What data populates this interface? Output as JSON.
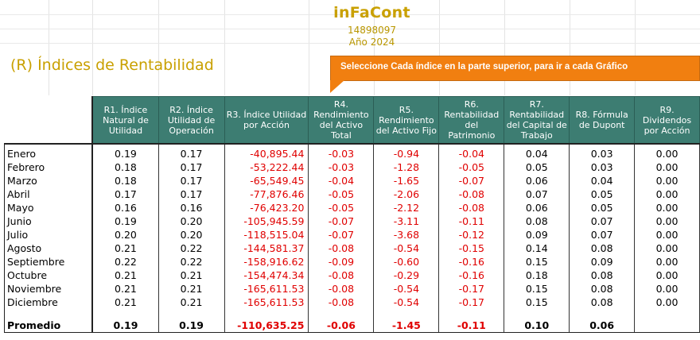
{
  "header": {
    "brand": "inFaCont",
    "company_id": "14898097",
    "year_label": "Año 2024"
  },
  "section_title": "(R) Índices de Rentabilidad",
  "callout_text": "Seleccione Cada índice en la parte superior, para ir a cada Gráfico",
  "table": {
    "columns": [
      "R1. Índice Natural de Utilidad",
      "R2. Índice Utilidad de Operación",
      "R3. Índice Utilidad por Acción",
      "R4. Rendimiento del Activo Total",
      "R5. Rendimiento del Activo Fijo",
      "R6. Rentabilidad del Patrimonio",
      "R7. Rentabilidad del Capital de Trabajo",
      "R8. Fórmula de Dupont",
      "R9. Dividendos por Acción"
    ],
    "rows": [
      {
        "month": "Enero",
        "values": [
          "0.19",
          "0.17",
          "-40,895.44",
          "-0.03",
          "-0.94",
          "-0.04",
          "0.04",
          "0.03",
          "0.00"
        ]
      },
      {
        "month": "Febrero",
        "values": [
          "0.18",
          "0.17",
          "-53,222.44",
          "-0.03",
          "-1.28",
          "-0.05",
          "0.05",
          "0.03",
          "0.00"
        ]
      },
      {
        "month": "Marzo",
        "values": [
          "0.18",
          "0.17",
          "-65,549.45",
          "-0.04",
          "-1.65",
          "-0.07",
          "0.06",
          "0.04",
          "0.00"
        ]
      },
      {
        "month": "Abril",
        "values": [
          "0.17",
          "0.17",
          "-77,876.46",
          "-0.05",
          "-2.06",
          "-0.08",
          "0.07",
          "0.05",
          "0.00"
        ]
      },
      {
        "month": "Mayo",
        "values": [
          "0.16",
          "0.16",
          "-76,423.20",
          "-0.05",
          "-2.12",
          "-0.08",
          "0.06",
          "0.05",
          "0.00"
        ]
      },
      {
        "month": "Junio",
        "values": [
          "0.19",
          "0.20",
          "-105,945.59",
          "-0.07",
          "-3.11",
          "-0.11",
          "0.08",
          "0.07",
          "0.00"
        ]
      },
      {
        "month": "Julio",
        "values": [
          "0.20",
          "0.20",
          "-118,515.04",
          "-0.07",
          "-3.68",
          "-0.12",
          "0.09",
          "0.07",
          "0.00"
        ]
      },
      {
        "month": "Agosto",
        "values": [
          "0.21",
          "0.22",
          "-144,581.37",
          "-0.08",
          "-0.54",
          "-0.15",
          "0.14",
          "0.08",
          "0.00"
        ]
      },
      {
        "month": "Septiembre",
        "values": [
          "0.22",
          "0.22",
          "-158,916.62",
          "-0.09",
          "-0.60",
          "-0.16",
          "0.15",
          "0.09",
          "0.00"
        ]
      },
      {
        "month": "Octubre",
        "values": [
          "0.21",
          "0.21",
          "-154,474.34",
          "-0.08",
          "-0.29",
          "-0.16",
          "0.18",
          "0.08",
          "0.00"
        ]
      },
      {
        "month": "Noviembre",
        "values": [
          "0.21",
          "0.21",
          "-165,611.53",
          "-0.08",
          "-0.54",
          "-0.17",
          "0.15",
          "0.08",
          "0.00"
        ]
      },
      {
        "month": "Diciembre",
        "values": [
          "0.21",
          "0.21",
          "-165,611.53",
          "-0.08",
          "-0.54",
          "-0.17",
          "0.15",
          "0.08",
          "0.00"
        ]
      }
    ],
    "average": {
      "label": "Promedio",
      "values": [
        "0.19",
        "0.19",
        "-110,635.25",
        "-0.06",
        "-1.45",
        "-0.11",
        "0.10",
        "0.06",
        ""
      ]
    }
  },
  "colors": {
    "brand": "#c9a000",
    "header_fill": "#3d7d72",
    "callout": "#f17f10",
    "negative": "#e00000"
  }
}
